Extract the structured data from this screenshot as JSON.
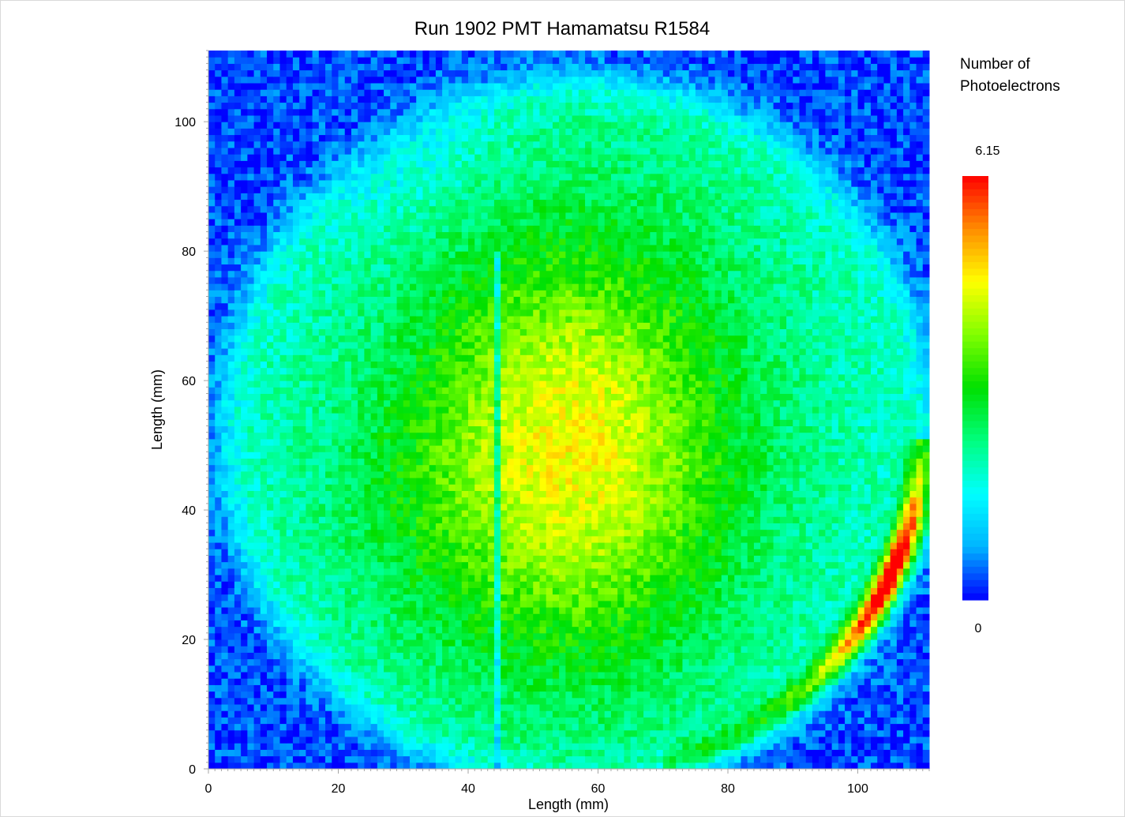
{
  "chart_data": {
    "type": "heatmap",
    "title": "Run 1902 PMT Hamamatsu R1584",
    "xlabel": "Length (mm)",
    "ylabel": "Length (mm)",
    "xlim": [
      0,
      111
    ],
    "ylim": [
      0,
      111
    ],
    "x_ticks": [
      0,
      20,
      40,
      60,
      80,
      100
    ],
    "y_ticks": [
      0,
      20,
      40,
      60,
      80,
      100
    ],
    "x_tick_labels": [
      "0",
      "20",
      "40",
      "60",
      "80",
      "100"
    ],
    "y_tick_labels": [
      "0",
      "20",
      "40",
      "60",
      "80",
      "100"
    ],
    "grid": false,
    "bins": 111,
    "colorbar": {
      "title_lines": [
        "Number of",
        "Photoelectrons"
      ],
      "min": 0,
      "max": 6.15,
      "min_label": "0",
      "max_label": "6.15",
      "colors": [
        "#0000ff",
        "#00b4ff",
        "#00ffff",
        "#00ff7f",
        "#00e000",
        "#80ff00",
        "#ffff00",
        "#ff8c00",
        "#ff0000"
      ],
      "placement": "right"
    },
    "field": {
      "description": "photoelectron yield over the PMT face",
      "disk_center": [
        57,
        52
      ],
      "disk_radius": 55,
      "peak_center": [
        56,
        50
      ],
      "peak_value": 4.3,
      "background_value": 0.3,
      "shadow_line_x": 44.5,
      "hot_arc_value": 6.15,
      "hot_arc_center": [
        57,
        52
      ],
      "hot_arc_radius": 53,
      "hot_arc_y_range": [
        5,
        45
      ]
    }
  }
}
